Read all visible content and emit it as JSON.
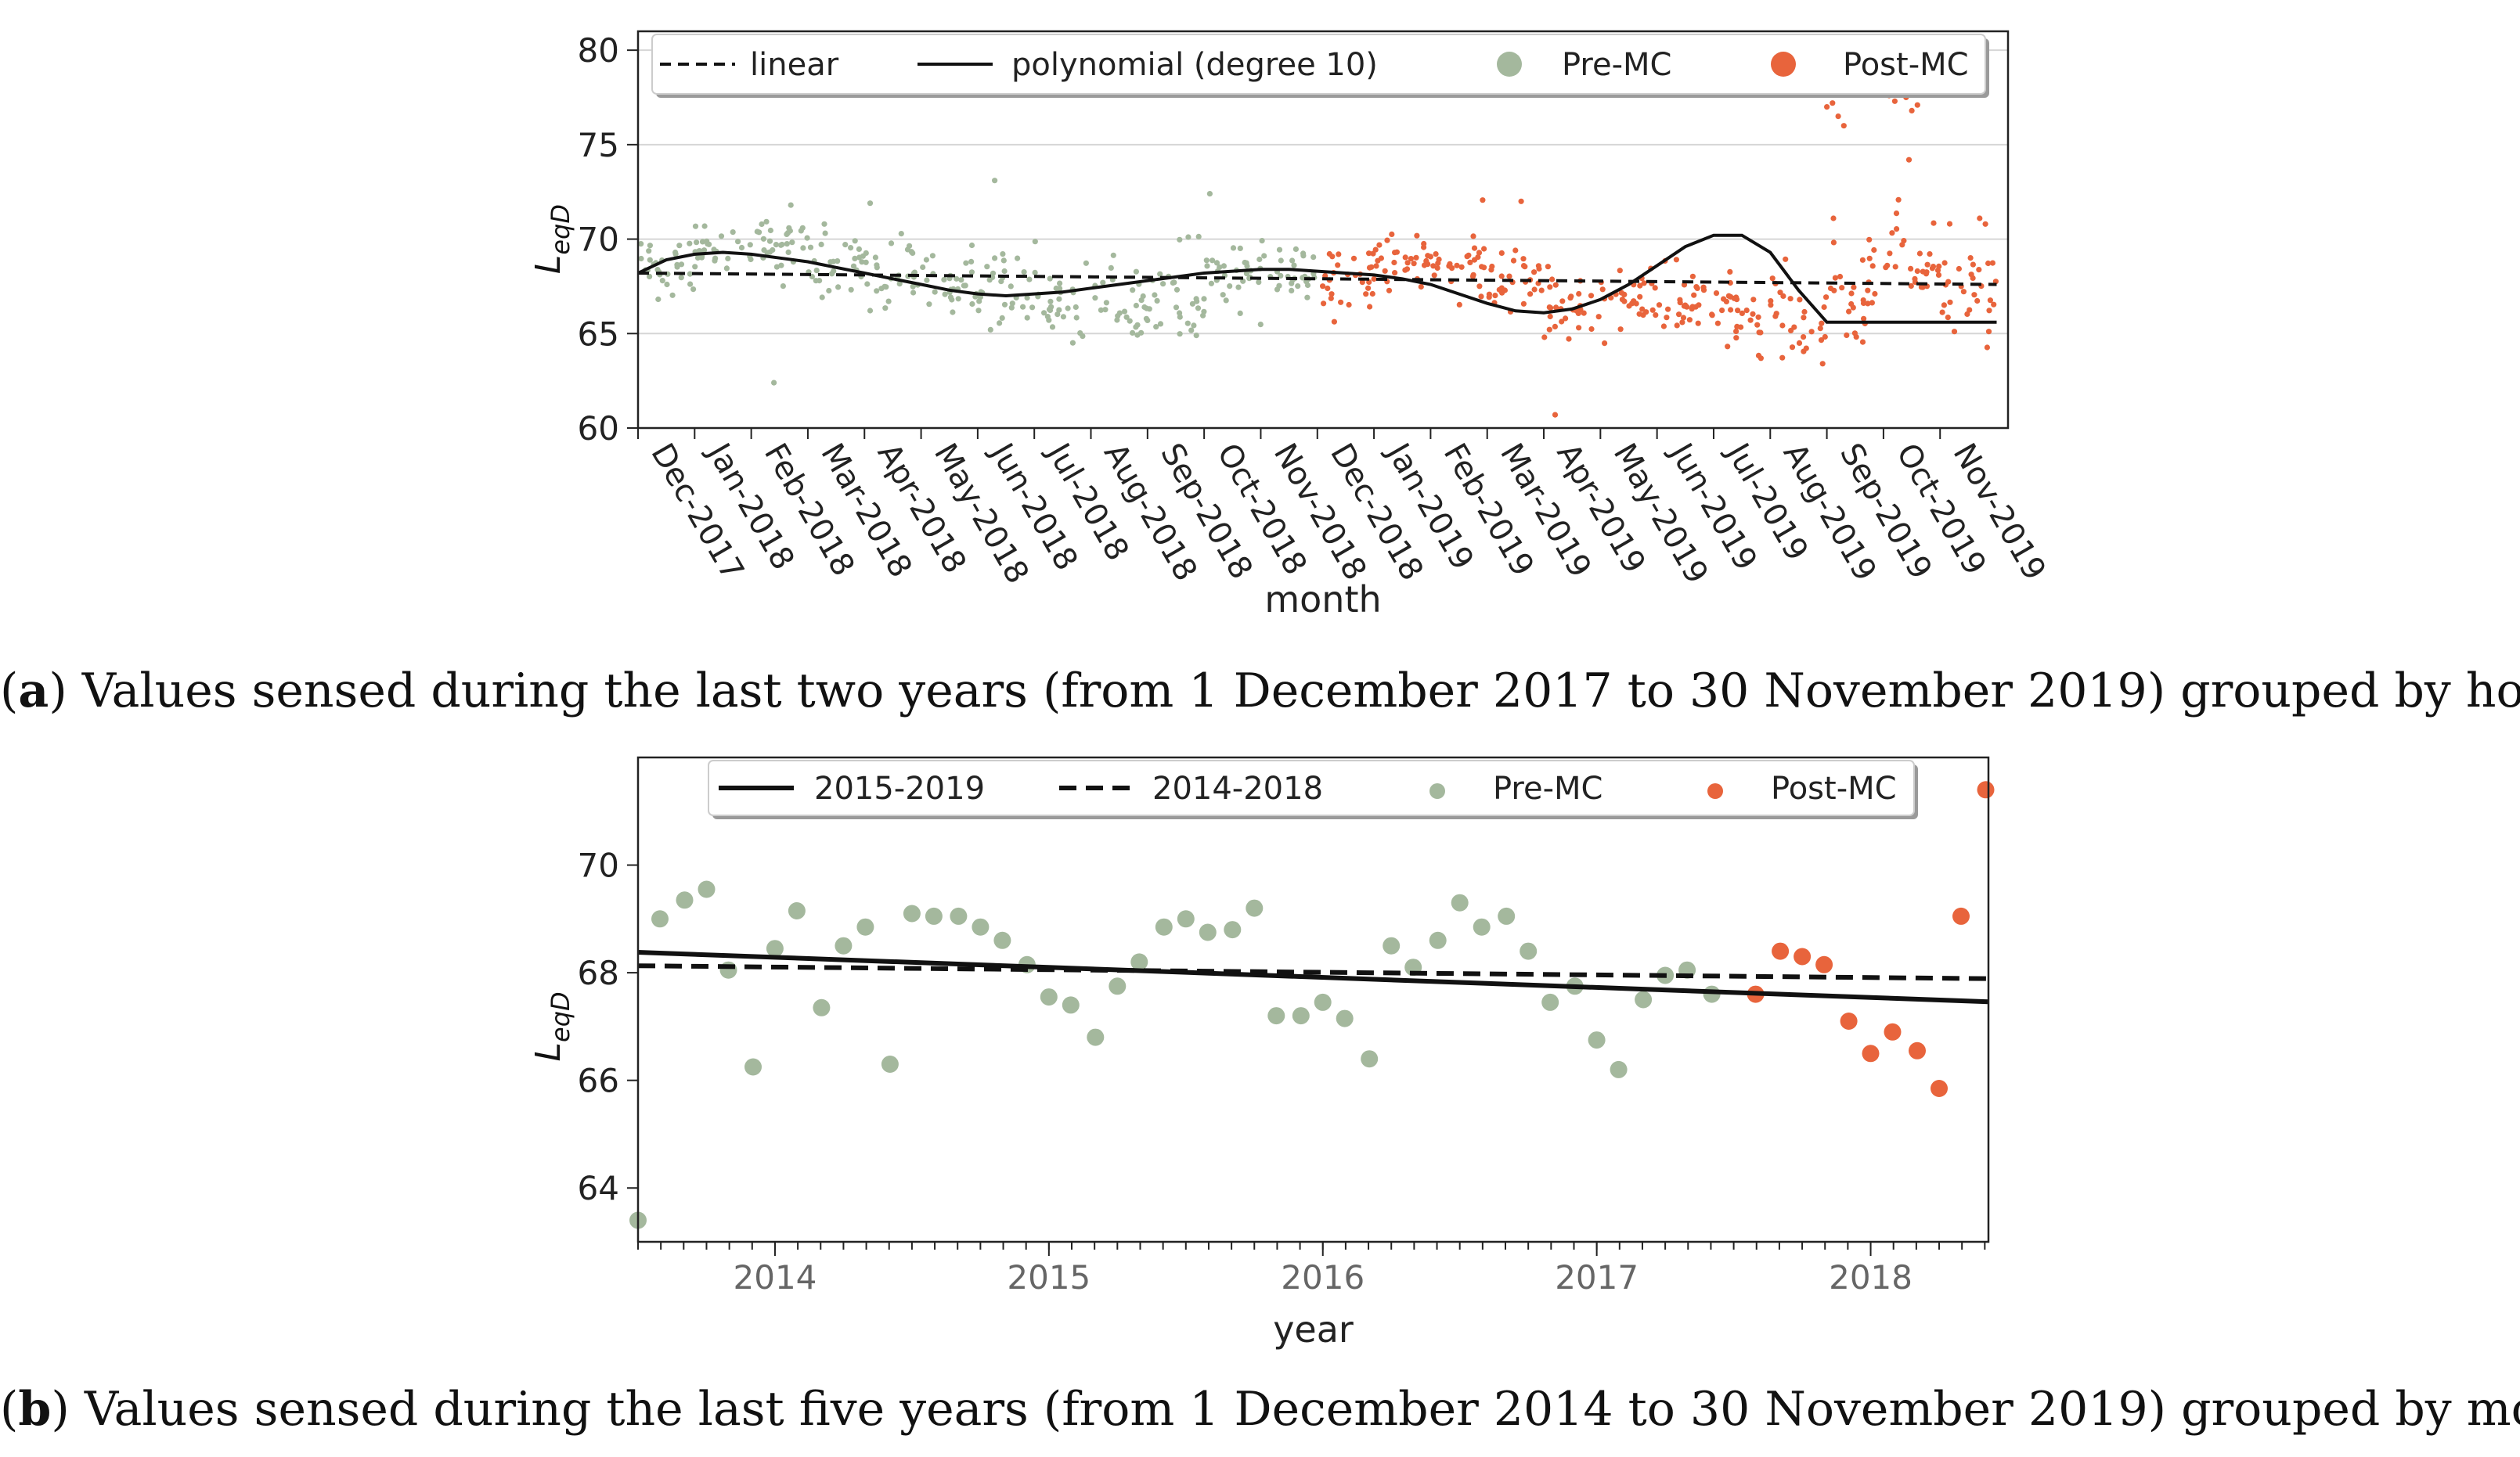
{
  "chart_data": [
    {
      "type": "scatter",
      "title": "",
      "xlabel": "month",
      "ylabel": "L",
      "ylabel_sub": "eqD",
      "ylim": [
        60,
        81
      ],
      "yticks": [
        60,
        65,
        70,
        75,
        80
      ],
      "grid": "horizontal",
      "legend_placement": "top",
      "legend": [
        {
          "name": "linear",
          "style": "dashed-line"
        },
        {
          "name": "polynomial (degree 10)",
          "style": "solid-line"
        },
        {
          "name": "Pre-MC",
          "style": "dot",
          "color": "#a4b89d"
        },
        {
          "name": "Post-MC",
          "style": "dot",
          "color": "#e8643c"
        }
      ],
      "x_tick_labels": [
        "Dec-2017",
        "Jan-2018",
        "Feb-2018",
        "Mar-2018",
        "Apr-2018",
        "May-2018",
        "Jun-2018",
        "Jul-2018",
        "Aug-2018",
        "Sep-2018",
        "Oct-2018",
        "Nov-2018",
        "Dec-2018",
        "Jan-2019",
        "Feb-2019",
        "Mar-2019",
        "Apr-2019",
        "May-2019",
        "Jun-2019",
        "Jul-2019",
        "Aug-2019",
        "Sep-2019",
        "Oct-2019",
        "Nov-2019"
      ],
      "linear_fit": {
        "x": [
          0,
          24
        ],
        "y": [
          68.2,
          67.6
        ]
      },
      "polynomial_fit": {
        "x": [
          0,
          0.5,
          1,
          1.5,
          2,
          2.5,
          3,
          3.5,
          4,
          4.5,
          5,
          5.5,
          6,
          6.5,
          7,
          7.5,
          8,
          8.5,
          9,
          9.5,
          10,
          10.5,
          11,
          11.5,
          12,
          12.5,
          13,
          13.5,
          14,
          14.5,
          15,
          15.5,
          16,
          16.5,
          17,
          17.5,
          18,
          18.5,
          19,
          19.5,
          20,
          20.5,
          21,
          21.5,
          22,
          22.5,
          23,
          23.5,
          24
        ],
        "y": [
          68.2,
          68.9,
          69.2,
          69.3,
          69.2,
          69.0,
          68.8,
          68.5,
          68.2,
          67.9,
          67.6,
          67.3,
          67.1,
          67.0,
          67.1,
          67.2,
          67.4,
          67.6,
          67.8,
          68.0,
          68.2,
          68.3,
          68.4,
          68.4,
          68.3,
          68.2,
          68.1,
          67.9,
          67.6,
          67.1,
          66.6,
          66.2,
          66.1,
          66.3,
          66.8,
          67.6,
          68.6,
          69.6,
          70.2,
          70.2,
          69.3,
          67.3,
          65.6,
          65.6,
          65.6,
          65.6,
          65.6,
          65.6,
          65.6
        ]
      },
      "series": [
        {
          "name": "Pre-MC",
          "color": "#a4b89d",
          "months": [
            0,
            12
          ],
          "monthly_center": [
            68.5,
            69.5,
            69.5,
            68.6,
            68.2,
            67.6,
            67.3,
            66.9,
            66.7,
            67.4,
            68.0,
            68.3
          ],
          "monthly_spread": [
            1.3,
            1.0,
            1.4,
            1.8,
            1.6,
            1.5,
            2.0,
            2.3,
            2.3,
            2.4,
            1.8,
            1.2
          ],
          "outliers": [
            {
              "x": 2.4,
              "y": 62.4
            },
            {
              "x": 6.3,
              "y": 73.1
            },
            {
              "x": 10.1,
              "y": 72.4
            },
            {
              "x": 4.1,
              "y": 71.9
            },
            {
              "x": 2.7,
              "y": 71.8
            }
          ]
        },
        {
          "name": "Post-MC",
          "color": "#e8643c",
          "months": [
            12,
            24
          ],
          "monthly_center": [
            67.7,
            68.8,
            68.6,
            67.6,
            66.6,
            66.6,
            66.6,
            66.1,
            65.7,
            67.0,
            68.4,
            67.3
          ],
          "monthly_spread": [
            1.6,
            1.2,
            1.5,
            1.8,
            1.8,
            1.5,
            1.6,
            2.0,
            2.3,
            2.8,
            3.0,
            2.2
          ],
          "outliers": [
            {
              "x": 16.2,
              "y": 60.7
            },
            {
              "x": 15.6,
              "y": 72.0
            },
            {
              "x": 21.0,
              "y": 77.0
            },
            {
              "x": 21.2,
              "y": 76.5
            },
            {
              "x": 21.3,
              "y": 76.0
            },
            {
              "x": 21.1,
              "y": 77.2
            },
            {
              "x": 22.1,
              "y": 77.6
            },
            {
              "x": 22.2,
              "y": 77.3
            },
            {
              "x": 22.3,
              "y": 77.9
            },
            {
              "x": 22.4,
              "y": 77.5
            },
            {
              "x": 22.5,
              "y": 76.8
            },
            {
              "x": 22.6,
              "y": 77.1
            },
            {
              "x": 22.45,
              "y": 74.2
            },
            {
              "x": 22.0,
              "y": 78.0
            },
            {
              "x": 23.7,
              "y": 71.1
            },
            {
              "x": 23.8,
              "y": 70.8
            }
          ]
        }
      ]
    },
    {
      "type": "scatter",
      "title": "",
      "xlabel": "year",
      "ylabel": "L",
      "ylabel_sub": "eqD",
      "ylim": [
        63,
        72
      ],
      "yticks": [
        64,
        66,
        68,
        70
      ],
      "xlim": [
        2013.5,
        2018.43
      ],
      "x_tick_values": [
        2014,
        2015,
        2016,
        2017,
        2018
      ],
      "x_tick_labels": [
        "2014",
        "2015",
        "2016",
        "2017",
        "2018"
      ],
      "grid": "none",
      "legend_placement": "top",
      "legend": [
        {
          "name": "2015-2019",
          "style": "solid-line"
        },
        {
          "name": "2014-2018",
          "style": "dashed-line"
        },
        {
          "name": "Pre-MC",
          "style": "dot",
          "color": "#a4b89d"
        },
        {
          "name": "Post-MC",
          "style": "dot",
          "color": "#e8643c"
        }
      ],
      "trend_2015_2019": {
        "x": [
          2013.5,
          2018.43
        ],
        "y": [
          68.38,
          67.46
        ]
      },
      "trend_2014_2018": {
        "x": [
          2013.5,
          2018.43
        ],
        "y": [
          68.13,
          67.89
        ]
      },
      "series": [
        {
          "name": "Pre-MC",
          "color": "#a4b89d",
          "x": [
            2013.5,
            2013.58,
            2013.67,
            2013.75,
            2013.83,
            2013.92,
            2014.0,
            2014.08,
            2014.17,
            2014.25,
            2014.33,
            2014.42,
            2014.5,
            2014.58,
            2014.67,
            2014.75,
            2014.83,
            2014.92,
            2015.0,
            2015.08,
            2015.17,
            2015.25,
            2015.33,
            2015.42,
            2015.5,
            2015.58,
            2015.67,
            2015.75,
            2015.83,
            2015.92,
            2016.0,
            2016.08,
            2016.17,
            2016.25,
            2016.33,
            2016.42,
            2016.5,
            2016.58,
            2016.67,
            2016.75,
            2016.83,
            2016.92,
            2017.0,
            2017.08,
            2017.17,
            2017.25,
            2017.33,
            2017.42
          ],
          "y": [
            63.4,
            69.0,
            69.35,
            69.55,
            68.05,
            66.25,
            68.45,
            69.15,
            67.35,
            68.5,
            68.85,
            66.3,
            69.1,
            69.05,
            69.05,
            68.85,
            68.6,
            68.15,
            67.55,
            67.4,
            66.8,
            67.75,
            68.2,
            68.85,
            69.0,
            68.75,
            68.8,
            69.2,
            67.2,
            67.2,
            67.45,
            67.15,
            66.4,
            68.5,
            68.1,
            68.6,
            69.3,
            68.85,
            69.05,
            68.4,
            67.45,
            67.75,
            66.75,
            66.2,
            67.5,
            67.95,
            68.05,
            67.6
          ]
        },
        {
          "name": "Post-MC",
          "color": "#e8643c",
          "x": [
            2017.58,
            2017.67,
            2017.75,
            2017.83,
            2017.92,
            2018.0,
            2018.08,
            2018.17,
            2018.25,
            2018.33,
            2018.42
          ],
          "y": [
            67.6,
            68.4,
            68.3,
            68.15,
            67.1,
            66.5,
            66.9,
            66.55,
            65.85,
            69.05,
            71.4
          ]
        }
      ]
    }
  ],
  "captions": {
    "a": {
      "label": "a",
      "text": "Values sensed during the last two years (from 1 December 2017 to 30 November 2019) grouped by hours."
    },
    "b": {
      "label": "b",
      "text": "Values sensed during the last five years (from 1 December 2014 to 30 November 2019) grouped by month."
    }
  }
}
